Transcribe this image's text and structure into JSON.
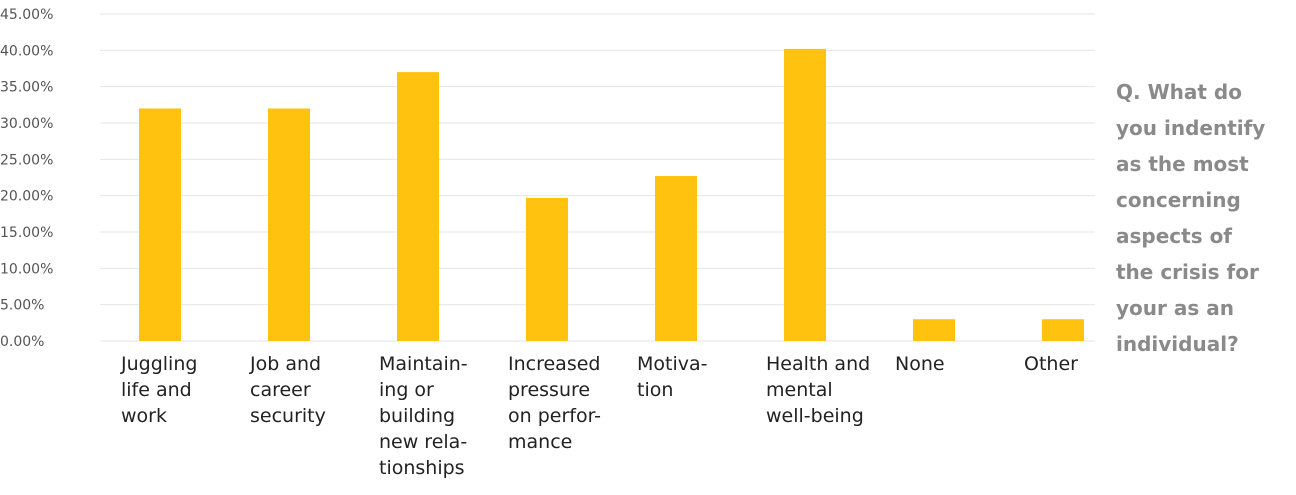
{
  "chart_data": {
    "type": "bar",
    "categories": [
      "Juggling life and work",
      "Job and career security",
      "Maintaining or building new relationships",
      "Increased pressure on performance",
      "Motivation",
      "Health and mental well-being",
      "None",
      "Other"
    ],
    "category_lines": [
      [
        "Juggling",
        "life and",
        "work"
      ],
      [
        "Job and",
        "career",
        "security"
      ],
      [
        "Maintain-",
        "ing or",
        "building",
        "new rela-",
        "tionships"
      ],
      [
        "Increased",
        "pressure",
        "on perfor-",
        "mance"
      ],
      [
        "Motiva-",
        "tion"
      ],
      [
        "Health and",
        "mental",
        "well-being"
      ],
      [
        "None"
      ],
      [
        "Other"
      ]
    ],
    "values": [
      32,
      32,
      37,
      19.7,
      22.7,
      40.2,
      3,
      3
    ],
    "ylim": [
      0,
      45
    ],
    "y_ticks": [
      0,
      5,
      10,
      15,
      20,
      25,
      30,
      35,
      40,
      45
    ],
    "y_tick_labels": [
      "0.00%",
      "5.00%",
      "10.00%",
      "15.00%",
      "20.00%",
      "25.00%",
      "30.00%",
      "35.00%",
      "40.00%",
      "45.00%"
    ],
    "grid": true,
    "bar_color": "#FFC20E",
    "grid_color": "#e6e6e6",
    "title": "",
    "xlabel": "",
    "ylabel": ""
  },
  "question_text": "Q. What do\nyou indentify\nas the most\nconcerning\naspects of\nthe crisis for\nyour as an\nindividual?"
}
